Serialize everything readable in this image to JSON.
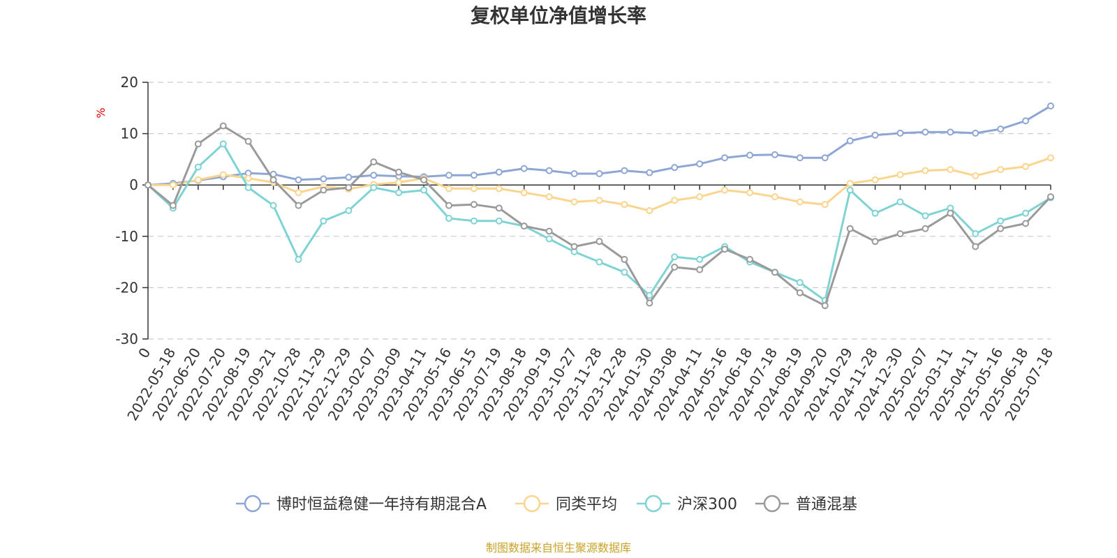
{
  "chart_data": {
    "type": "line",
    "title": "复权单位净值增长率",
    "ylabel": "%",
    "ylim": [
      -30,
      20
    ],
    "yticks": [
      "20",
      "10",
      "0",
      "-10",
      "-20",
      "-30"
    ],
    "x_categories": [
      "0",
      "2022-05-18",
      "2022-06-20",
      "2022-07-20",
      "2022-08-19",
      "2022-09-21",
      "2022-10-28",
      "2022-11-29",
      "2022-12-29",
      "2023-02-07",
      "2023-03-09",
      "2023-04-11",
      "2023-05-16",
      "2023-06-15",
      "2023-07-19",
      "2023-08-18",
      "2023-09-19",
      "2023-10-27",
      "2023-11-28",
      "2023-12-28",
      "2024-01-30",
      "2024-03-08",
      "2024-04-11",
      "2024-05-16",
      "2024-06-18",
      "2024-07-18",
      "2024-08-19",
      "2024-09-20",
      "2024-10-29",
      "2024-11-28",
      "2024-12-30",
      "2025-02-07",
      "2025-03-11",
      "2025-04-11",
      "2025-05-16",
      "2025-06-18",
      "2025-07-18"
    ],
    "grid": true,
    "legend_position": "bottom",
    "series": [
      {
        "name": "博时恒益稳健一年持有期混合A",
        "color": "#8ea6d6",
        "values": [
          0,
          0.3,
          0.9,
          1.6,
          2.3,
          2.1,
          1.0,
          1.2,
          1.5,
          1.9,
          1.7,
          1.6,
          1.9,
          1.9,
          2.5,
          3.2,
          2.8,
          2.2,
          2.2,
          2.8,
          2.4,
          3.4,
          4.1,
          5.3,
          5.8,
          5.9,
          5.3,
          5.3,
          8.6,
          9.7,
          10.1,
          10.3,
          10.3,
          10.1,
          10.9,
          12.5,
          15.4
        ]
      },
      {
        "name": "同类平均",
        "color": "#fbd48d",
        "values": [
          0,
          0.0,
          1.0,
          2.0,
          1.3,
          0.5,
          -1.5,
          -0.3,
          -0.8,
          0.1,
          0.5,
          1.3,
          -0.7,
          -0.7,
          -0.7,
          -1.5,
          -2.3,
          -3.3,
          -3.0,
          -3.8,
          -5.0,
          -3.0,
          -2.3,
          -1.0,
          -1.5,
          -2.3,
          -3.3,
          -3.8,
          0.3,
          1.0,
          2.0,
          2.8,
          3.0,
          1.8,
          3.0,
          3.6,
          5.3
        ]
      },
      {
        "name": "沪深300",
        "color": "#7fd3d3",
        "values": [
          0,
          -4.5,
          3.5,
          8.0,
          -0.5,
          -4.0,
          -14.5,
          -7.0,
          -5.0,
          -0.5,
          -1.5,
          -1.0,
          -6.5,
          -7.0,
          -7.0,
          -8.0,
          -10.5,
          -13.0,
          -15.0,
          -17.0,
          -21.5,
          -14.0,
          -14.5,
          -12.0,
          -15.0,
          -17.0,
          -19.0,
          -22.5,
          -1.0,
          -5.5,
          -3.3,
          -6.0,
          -4.5,
          -9.5,
          -7.0,
          -5.5,
          -2.5
        ]
      },
      {
        "name": "普通混基",
        "color": "#9a9a9a",
        "values": [
          0,
          -4.0,
          8.0,
          11.5,
          8.5,
          1.0,
          -4.0,
          -1.0,
          -0.5,
          4.5,
          2.5,
          1.0,
          -4.0,
          -3.8,
          -4.5,
          -8.0,
          -9.0,
          -12.0,
          -11.0,
          -14.5,
          -23.0,
          -16.0,
          -16.5,
          -12.5,
          -14.5,
          -17.0,
          -21.0,
          -23.5,
          -8.5,
          -11.0,
          -9.5,
          -8.5,
          -5.5,
          -12.0,
          -8.5,
          -7.5,
          -2.3
        ]
      }
    ]
  },
  "footer": {
    "source_text": "制图数据来自恒生聚源数据库"
  }
}
